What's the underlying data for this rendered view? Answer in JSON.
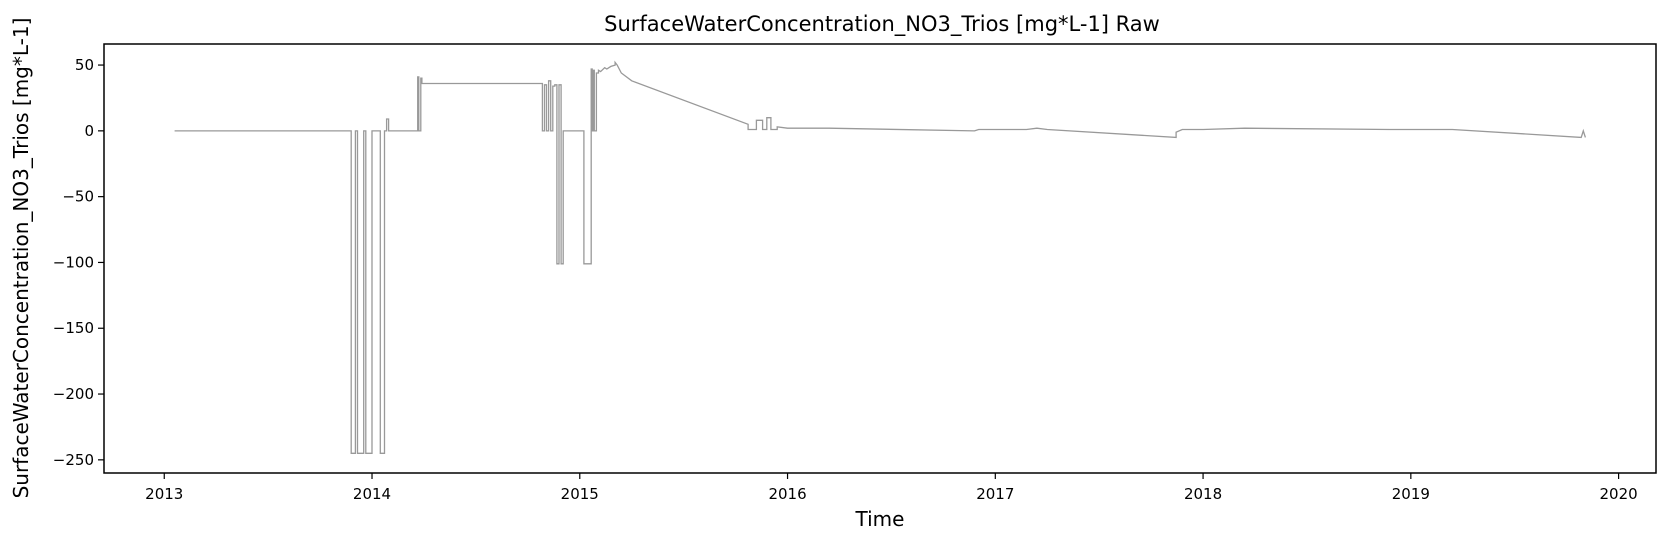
{
  "chart_data": {
    "type": "line",
    "title": "SurfaceWaterConcentration_NO3_Trios [mg*L-1] Raw",
    "xlabel": "Time",
    "ylabel": "SurfaceWaterConcentration_NO3_Trios [mg*L-1]",
    "xlim": [
      2012.71,
      2020.18
    ],
    "ylim": [
      -260,
      66
    ],
    "x_ticks": [
      2013,
      2014,
      2015,
      2016,
      2017,
      2018,
      2019,
      2020
    ],
    "x_tick_labels": [
      "2013",
      "2014",
      "2015",
      "2016",
      "2017",
      "2018",
      "2019",
      "2020"
    ],
    "y_ticks": [
      50,
      0,
      -50,
      -100,
      -150,
      -200,
      -250
    ],
    "y_tick_labels": [
      "50",
      "0",
      "−50",
      "−100",
      "−150",
      "−200",
      "−250"
    ],
    "grid": false,
    "line_color": "#999999",
    "series": [
      {
        "x": [
          2013.05,
          2013.9,
          2013.9,
          2013.92,
          2013.92,
          2013.93,
          2013.93,
          2013.96,
          2013.96,
          2013.97,
          2013.97,
          2014.0,
          2014.0,
          2014.04,
          2014.04,
          2014.06,
          2014.06,
          2014.07,
          2014.07,
          2014.08,
          2014.08,
          2014.22,
          2014.22,
          2014.225,
          2014.225,
          2014.235,
          2014.235,
          2014.24,
          2014.24,
          2014.82,
          2014.82,
          2014.83,
          2014.83,
          2014.84,
          2014.84,
          2014.85,
          2014.85,
          2014.86,
          2014.86,
          2014.87,
          2014.87,
          2014.88,
          2014.88,
          2014.89,
          2014.89,
          2014.9,
          2014.9,
          2014.91,
          2014.91,
          2014.92,
          2014.92,
          2015.02,
          2015.02,
          2015.055,
          2015.055,
          2015.06,
          2015.06,
          2015.065,
          2015.065,
          2015.07,
          2015.07,
          2015.08,
          2015.08,
          2015.09,
          2015.09,
          2015.1,
          2015.12,
          2015.13,
          2015.15,
          2015.17,
          2015.17,
          2015.18,
          2015.2,
          2015.25,
          2015.81,
          2015.81,
          2015.85,
          2015.85,
          2015.88,
          2015.88,
          2015.9,
          2015.9,
          2015.92,
          2015.92,
          2015.95,
          2015.95,
          2016.0,
          2016.2,
          2016.9,
          2016.92,
          2017.0,
          2017.15,
          2017.2,
          2017.25,
          2017.87,
          2017.87,
          2017.9,
          2018.0,
          2018.2,
          2018.9,
          2019.0,
          2019.1,
          2019.2,
          2019.82,
          2019.82,
          2019.83,
          2019.83,
          2019.84
        ],
        "y": [
          0,
          0,
          -245,
          -245,
          0,
          0,
          -245,
          -245,
          0,
          0,
          -245,
          -245,
          0,
          0,
          -245,
          -245,
          0,
          0,
          9,
          9,
          0,
          0,
          41,
          41,
          0,
          0,
          40,
          40,
          36,
          36,
          0,
          0,
          35,
          35,
          0,
          0,
          38,
          38,
          0,
          0,
          34,
          34,
          35,
          35,
          -101,
          -101,
          35,
          35,
          -101,
          -101,
          0,
          0,
          -101,
          -101,
          47,
          47,
          0,
          0,
          46,
          46,
          0,
          0,
          44,
          44,
          46,
          45,
          48,
          47,
          49,
          50,
          52,
          50,
          44,
          38,
          5,
          1,
          1,
          8,
          8,
          1,
          1,
          10,
          10,
          1,
          1,
          3,
          2,
          2,
          0,
          1,
          1,
          1,
          2,
          1,
          -5,
          -1,
          1,
          1,
          2,
          1,
          1,
          1,
          1,
          -5,
          -5,
          0,
          0,
          -5
        ]
      }
    ]
  }
}
